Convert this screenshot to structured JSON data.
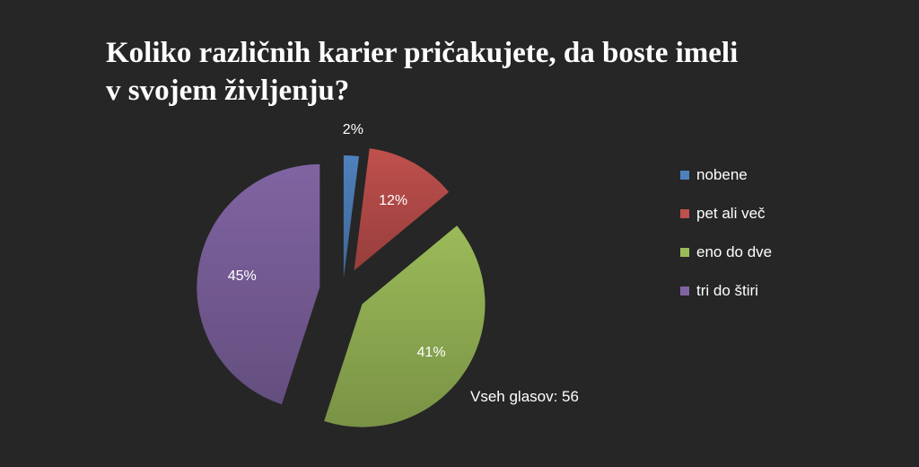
{
  "chart_data": {
    "type": "pie",
    "title_lines": [
      "Koliko različnih karier pričakujete, da boste imeli",
      "v svojem življenju?"
    ],
    "categories": [
      "nobene",
      "pet ali več",
      "eno do dve",
      "tri do štiri"
    ],
    "values": [
      2,
      12,
      41,
      45
    ],
    "labels": [
      "2%",
      "12%",
      "41%",
      "45%"
    ],
    "colors": [
      "#4f81bd",
      "#c0504d",
      "#9bbb59",
      "#8064a2"
    ],
    "exploded": true,
    "legend_position": "right",
    "annotation": "Vseh glasov: 56"
  }
}
